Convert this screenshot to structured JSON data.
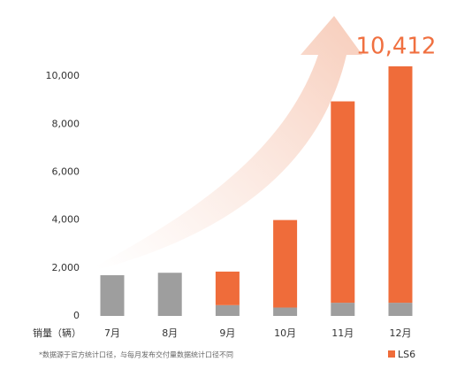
{
  "chart_data": {
    "type": "bar",
    "stacked": true,
    "y_label": "销量（辆）",
    "categories": [
      "7月",
      "8月",
      "9月",
      "10月",
      "11月",
      "12月"
    ],
    "series": [
      {
        "color": "#9e9e9e",
        "values": [
          1700,
          1800,
          450,
          350,
          550,
          550
        ]
      },
      {
        "name": "LS6",
        "color": "#ef6c3a",
        "values": [
          null,
          null,
          1400,
          3650,
          8400,
          9862
        ]
      }
    ],
    "annotation": "10,412",
    "footnote": "*数据源于官方统计口径，与每月发布交付量数据统计口径不同",
    "ylim": [
      0,
      11000
    ],
    "yticks": [
      0,
      {
        "value": 2000,
        "label": "2,000"
      },
      {
        "value": 4000,
        "label": "4,000"
      },
      {
        "value": 6000,
        "label": "6,000"
      },
      {
        "value": 8000,
        "label": "8,000"
      },
      {
        "value": 10000,
        "label": "10,000"
      }
    ],
    "grid": false,
    "legend": "bottom-right"
  }
}
